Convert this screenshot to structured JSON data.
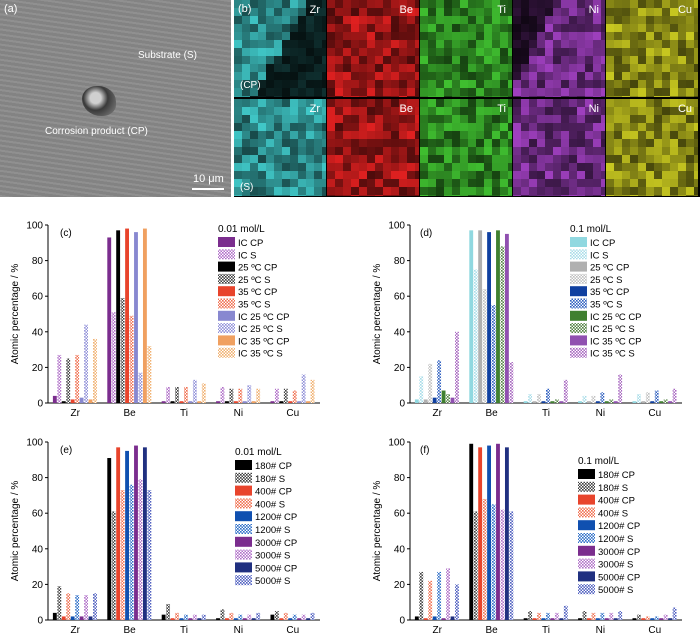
{
  "figure": {
    "panel_a": {
      "label": "(a)",
      "annotations": [
        "Substrate (S)",
        "Corrosion product (CP)"
      ],
      "scale_bar": "10 μm"
    },
    "panel_b": {
      "label": "(b)",
      "row_labels": [
        "(CP)",
        "(S)"
      ],
      "maps": [
        {
          "element": "Zr",
          "color": "#40c8c8"
        },
        {
          "element": "Be",
          "color": "#e02020"
        },
        {
          "element": "Ti",
          "color": "#40c030"
        },
        {
          "element": "Ni",
          "color": "#a040c0"
        },
        {
          "element": "Cu",
          "color": "#c8c820"
        }
      ]
    }
  },
  "chart_data": [
    {
      "id": "c",
      "label": "(c)",
      "type": "bar",
      "title": "0.01 mol/L",
      "ylabel": "Atomic percentage / %",
      "ylim": [
        0,
        100
      ],
      "yticks": [
        0,
        20,
        40,
        60,
        80,
        100
      ],
      "categories": [
        "Zr",
        "Be",
        "Ti",
        "Ni",
        "Cu"
      ],
      "series": [
        {
          "name": "IC CP",
          "color": "#7b2d8e",
          "pattern": "solid",
          "values": [
            4,
            93,
            1,
            1,
            1
          ]
        },
        {
          "name": "IC S",
          "color": "#b070c8",
          "pattern": "hatch",
          "values": [
            27,
            51,
            9,
            9,
            8
          ]
        },
        {
          "name": "25 ºC CP",
          "color": "#000000",
          "pattern": "solid",
          "values": [
            1,
            97,
            1,
            1,
            1
          ]
        },
        {
          "name": "25 ºC S",
          "color": "#404040",
          "pattern": "hatch",
          "values": [
            25,
            59,
            9,
            8,
            8
          ]
        },
        {
          "name": "35 ºC CP",
          "color": "#e8442c",
          "pattern": "solid",
          "values": [
            2,
            98,
            1,
            1,
            1
          ]
        },
        {
          "name": "35 ºC S",
          "color": "#f07050",
          "pattern": "hatch",
          "values": [
            27,
            49,
            9,
            8,
            7
          ]
        },
        {
          "name": "IC 25 ºC CP",
          "color": "#8888d0",
          "pattern": "solid",
          "values": [
            3,
            96,
            1,
            1,
            1
          ]
        },
        {
          "name": "IC 25 ºC S",
          "color": "#9090d8",
          "pattern": "hatch",
          "values": [
            44,
            17,
            13,
            10,
            16
          ]
        },
        {
          "name": "IC 35 ºC CP",
          "color": "#f0a060",
          "pattern": "solid",
          "values": [
            2,
            98,
            1,
            1,
            1
          ]
        },
        {
          "name": "IC 35 ºC S",
          "color": "#f0b070",
          "pattern": "hatch",
          "values": [
            36,
            32,
            11,
            8,
            13
          ]
        }
      ]
    },
    {
      "id": "d",
      "label": "(d)",
      "type": "bar",
      "title": "0.1 mol/L",
      "ylabel": "Atomic percentage / %",
      "ylim": [
        0,
        100
      ],
      "yticks": [
        0,
        20,
        40,
        60,
        80,
        100
      ],
      "categories": [
        "Zr",
        "Be",
        "Ti",
        "Ni",
        "Cu"
      ],
      "series": [
        {
          "name": "IC CP",
          "color": "#90d8e0",
          "pattern": "solid",
          "values": [
            2,
            97,
            1,
            1,
            1
          ]
        },
        {
          "name": "IC S",
          "color": "#a8dce8",
          "pattern": "hatch",
          "values": [
            15,
            75,
            5,
            4,
            5
          ]
        },
        {
          "name": "25 ºC CP",
          "color": "#b0b0b0",
          "pattern": "solid",
          "values": [
            2,
            97,
            1,
            1,
            1
          ]
        },
        {
          "name": "25 ºC S",
          "color": "#c0c0c0",
          "pattern": "hatch",
          "values": [
            22,
            64,
            5,
            4,
            6
          ]
        },
        {
          "name": "35 ºC CP",
          "color": "#1040a0",
          "pattern": "solid",
          "values": [
            3,
            96,
            1,
            1,
            1
          ]
        },
        {
          "name": "35 ºC S",
          "color": "#3060c0",
          "pattern": "hatch",
          "values": [
            24,
            55,
            8,
            6,
            7
          ]
        },
        {
          "name": "IC 25 ºC CP",
          "color": "#408030",
          "pattern": "solid",
          "values": [
            7,
            97,
            1,
            1,
            1
          ]
        },
        {
          "name": "IC 25 ºC S",
          "color": "#508040",
          "pattern": "hatch",
          "values": [
            5,
            88,
            2,
            2,
            2
          ]
        },
        {
          "name": "IC 35 ºC CP",
          "color": "#9050b0",
          "pattern": "solid",
          "values": [
            3,
            95,
            1,
            1,
            1
          ]
        },
        {
          "name": "IC 35 ºC S",
          "color": "#a868c0",
          "pattern": "hatch",
          "values": [
            40,
            23,
            13,
            16,
            8
          ]
        }
      ]
    },
    {
      "id": "e",
      "label": "(e)",
      "type": "bar",
      "title": "0.01 mol/L",
      "ylabel": "Atomic percentage / %",
      "ylim": [
        0,
        100
      ],
      "yticks": [
        0,
        20,
        40,
        60,
        80,
        100
      ],
      "categories": [
        "Zr",
        "Be",
        "Ti",
        "Ni",
        "Cu"
      ],
      "series": [
        {
          "name": "180# CP",
          "color": "#000000",
          "pattern": "solid",
          "values": [
            4,
            91,
            3,
            1,
            3
          ]
        },
        {
          "name": "180# S",
          "color": "#404040",
          "pattern": "hatch",
          "values": [
            19,
            61,
            9,
            6,
            5
          ]
        },
        {
          "name": "400# CP",
          "color": "#e8442c",
          "pattern": "solid",
          "values": [
            2,
            97,
            1,
            1,
            1
          ]
        },
        {
          "name": "400# S",
          "color": "#f07050",
          "pattern": "hatch",
          "values": [
            15,
            73,
            4,
            4,
            4
          ]
        },
        {
          "name": "1200# CP",
          "color": "#1050b0",
          "pattern": "solid",
          "values": [
            2,
            95,
            1,
            1,
            1
          ]
        },
        {
          "name": "1200# S",
          "color": "#3070c8",
          "pattern": "hatch",
          "values": [
            14,
            76,
            3,
            3,
            3
          ]
        },
        {
          "name": "3000# CP",
          "color": "#7b2d8e",
          "pattern": "solid",
          "values": [
            2,
            98,
            1,
            1,
            1
          ]
        },
        {
          "name": "3000# S",
          "color": "#b070c8",
          "pattern": "hatch",
          "values": [
            14,
            79,
            3,
            3,
            3
          ]
        },
        {
          "name": "5000# CP",
          "color": "#203080",
          "pattern": "solid",
          "values": [
            2,
            97,
            1,
            1,
            1
          ]
        },
        {
          "name": "5000# S",
          "color": "#5060c0",
          "pattern": "hatch",
          "values": [
            15,
            73,
            3,
            4,
            4
          ]
        }
      ]
    },
    {
      "id": "f",
      "label": "(f)",
      "type": "bar",
      "title": "0.1 mol/L",
      "ylabel": "Atomic percentage / %",
      "ylim": [
        0,
        100
      ],
      "yticks": [
        0,
        20,
        40,
        60,
        80,
        100
      ],
      "categories": [
        "Zr",
        "Be",
        "Ti",
        "Ni",
        "Cu"
      ],
      "series": [
        {
          "name": "180# CP",
          "color": "#000000",
          "pattern": "solid",
          "values": [
            2,
            99,
            1,
            1,
            1
          ]
        },
        {
          "name": "180# S",
          "color": "#404040",
          "pattern": "hatch",
          "values": [
            27,
            61,
            5,
            5,
            3
          ]
        },
        {
          "name": "400# CP",
          "color": "#e8442c",
          "pattern": "solid",
          "values": [
            1,
            97,
            1,
            1,
            1
          ]
        },
        {
          "name": "400# S",
          "color": "#f07050",
          "pattern": "hatch",
          "values": [
            22,
            68,
            4,
            4,
            2
          ]
        },
        {
          "name": "1200# CP",
          "color": "#1050b0",
          "pattern": "solid",
          "values": [
            2,
            98,
            1,
            1,
            1
          ]
        },
        {
          "name": "1200# S",
          "color": "#3070c8",
          "pattern": "hatch",
          "values": [
            27,
            65,
            4,
            4,
            2
          ]
        },
        {
          "name": "3000# CP",
          "color": "#7b2d8e",
          "pattern": "solid",
          "values": [
            1,
            99,
            1,
            1,
            1
          ]
        },
        {
          "name": "3000# S",
          "color": "#b070c8",
          "pattern": "hatch",
          "values": [
            29,
            62,
            4,
            4,
            3
          ]
        },
        {
          "name": "5000# CP",
          "color": "#203080",
          "pattern": "solid",
          "values": [
            2,
            97,
            1,
            1,
            1
          ]
        },
        {
          "name": "5000# S",
          "color": "#5060c0",
          "pattern": "hatch",
          "values": [
            20,
            61,
            8,
            5,
            7
          ]
        }
      ]
    }
  ]
}
